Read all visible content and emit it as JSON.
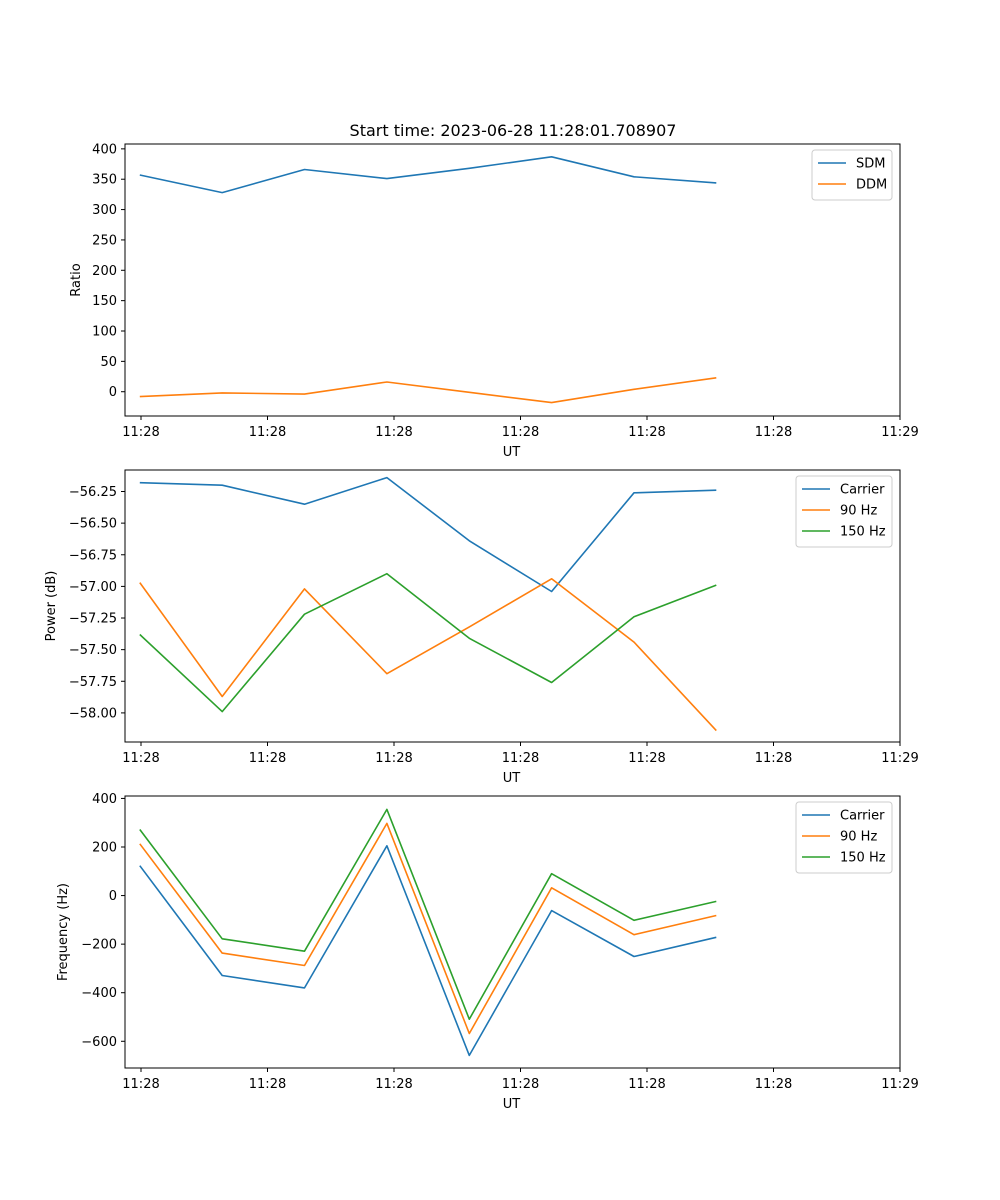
{
  "figure": {
    "title": "Start time: 2023-06-28 11:28:01.708907"
  },
  "chart_data": [
    {
      "type": "line",
      "title": "Start time: 2023-06-28 11:28:01.708907",
      "xlabel": "UT",
      "ylabel": "Ratio",
      "x_tick_labels": [
        "11:28",
        "11:28",
        "11:28",
        "11:28",
        "11:28",
        "11:28",
        "11:29"
      ],
      "x": [
        1,
        2,
        3,
        4,
        5,
        6,
        7,
        8
      ],
      "xlim": [
        0.82,
        10.23
      ],
      "ylim": [
        -40,
        408
      ],
      "y_ticks": [
        0,
        50,
        100,
        150,
        200,
        250,
        300,
        350,
        400
      ],
      "y_tick_labels": [
        "0",
        "50",
        "100",
        "150",
        "200",
        "250",
        "300",
        "350",
        "400"
      ],
      "legend_position": "top-right",
      "grid": false,
      "series": [
        {
          "name": "SDM",
          "color": "#1f77b4",
          "values": [
            357,
            328,
            366,
            351,
            368,
            387,
            354,
            344
          ]
        },
        {
          "name": "DDM",
          "color": "#ff7f0e",
          "values": [
            -8,
            -2,
            -4,
            16,
            -1,
            -18,
            4,
            23
          ]
        }
      ]
    },
    {
      "type": "line",
      "xlabel": "UT",
      "ylabel": "Power (dB)",
      "x_tick_labels": [
        "11:28",
        "11:28",
        "11:28",
        "11:28",
        "11:28",
        "11:28",
        "11:29"
      ],
      "x": [
        1,
        2,
        3,
        4,
        5,
        6,
        7,
        8
      ],
      "xlim": [
        0.82,
        10.23
      ],
      "ylim": [
        -58.23,
        -56.08
      ],
      "y_ticks": [
        -58.0,
        -57.75,
        -57.5,
        -57.25,
        -57.0,
        -56.75,
        -56.5,
        -56.25
      ],
      "y_tick_labels": [
        "−58.00",
        "−57.75",
        "−57.50",
        "−57.25",
        "−57.00",
        "−56.75",
        "−56.50",
        "−56.25"
      ],
      "legend_position": "top-right",
      "grid": false,
      "series": [
        {
          "name": "Carrier",
          "color": "#1f77b4",
          "values": [
            -56.18,
            -56.2,
            -56.35,
            -56.14,
            -56.64,
            -57.04,
            -56.26,
            -56.24
          ]
        },
        {
          "name": "90 Hz",
          "color": "#ff7f0e",
          "values": [
            -56.97,
            -57.87,
            -57.02,
            -57.69,
            -57.32,
            -56.94,
            -57.44,
            -58.14
          ]
        },
        {
          "name": "150 Hz",
          "color": "#2ca02c",
          "values": [
            -57.38,
            -57.99,
            -57.22,
            -56.9,
            -57.41,
            -57.76,
            -57.24,
            -56.99
          ]
        }
      ]
    },
    {
      "type": "line",
      "xlabel": "UT",
      "ylabel": "Frequency (Hz)",
      "x_tick_labels": [
        "11:28",
        "11:28",
        "11:28",
        "11:28",
        "11:28",
        "11:28",
        "11:29"
      ],
      "x": [
        1,
        2,
        3,
        4,
        5,
        6,
        7,
        8
      ],
      "xlim": [
        0.82,
        10.23
      ],
      "ylim": [
        -710,
        410
      ],
      "y_ticks": [
        -600,
        -400,
        -200,
        0,
        200,
        400
      ],
      "y_tick_labels": [
        "−600",
        "−400",
        "−200",
        "0",
        "200",
        "400"
      ],
      "legend_position": "top-right",
      "grid": false,
      "series": [
        {
          "name": "Carrier",
          "color": "#1f77b4",
          "values": [
            123,
            -329,
            -380,
            205,
            -658,
            -62,
            -251,
            -172
          ]
        },
        {
          "name": "90 Hz",
          "color": "#ff7f0e",
          "values": [
            213,
            -237,
            -288,
            297,
            -568,
            32,
            -161,
            -82
          ]
        },
        {
          "name": "150 Hz",
          "color": "#2ca02c",
          "values": [
            272,
            -178,
            -229,
            355,
            -509,
            90,
            -102,
            -24
          ]
        }
      ]
    }
  ]
}
